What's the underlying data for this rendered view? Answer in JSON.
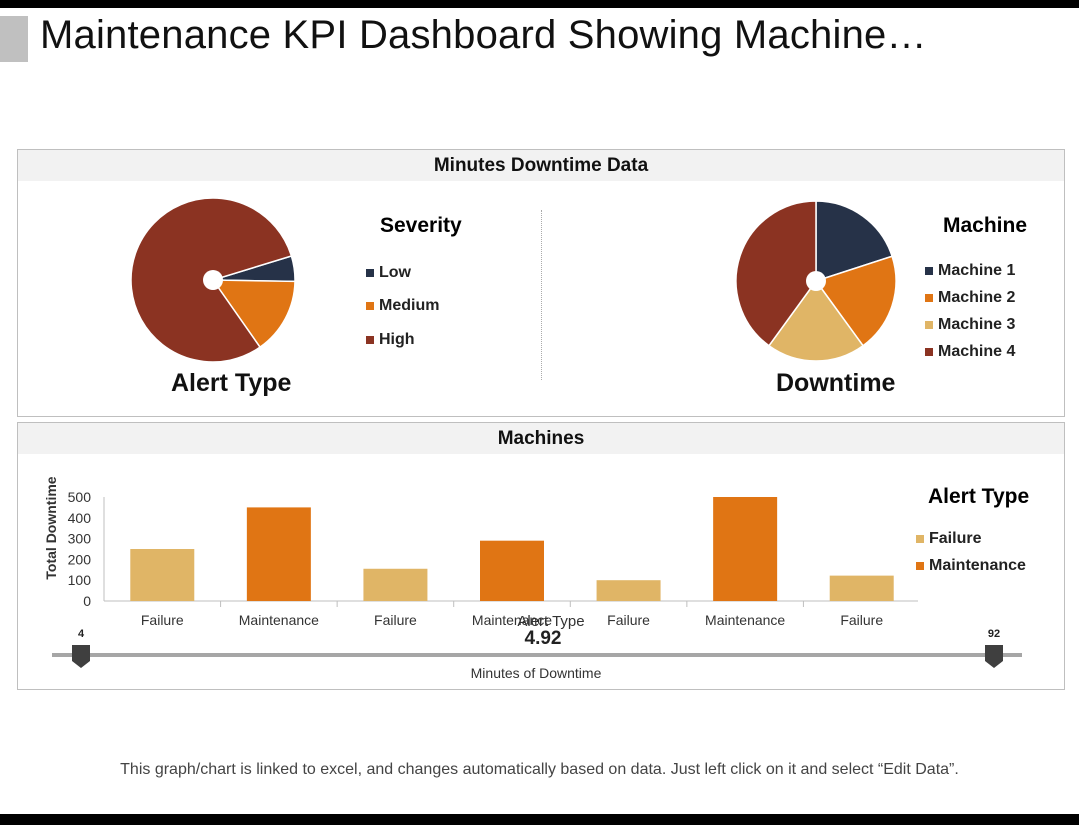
{
  "page": {
    "title": "Maintenance KPI Dashboard Showing Machine…",
    "footnote": "This graph/chart is linked to excel, and changes automatically  based on data. Just left click on it and select “Edit Data”."
  },
  "colors": {
    "navy": "#263248",
    "orange": "#e07514",
    "sand": "#e0b566",
    "brick": "#8b3322",
    "header_bg": "#f2f2f2",
    "slider_track": "#a6a6a6",
    "slider_handle": "#3f3f3f"
  },
  "panel_top": {
    "header": "Minutes Downtime Data"
  },
  "panel_bottom": {
    "header": "Machines"
  },
  "chart_data": [
    {
      "type": "pie",
      "name": "alert-type-pie",
      "title": "Alert Type",
      "legend_title": "Severity",
      "categories": [
        "Low",
        "Medium",
        "High"
      ],
      "values": [
        5,
        15,
        80
      ],
      "colors": [
        "#263248",
        "#e07514",
        "#8b3322"
      ]
    },
    {
      "type": "pie",
      "name": "downtime-pie",
      "title": "Downtime",
      "legend_title": "Machine",
      "categories": [
        "Machine 1",
        "Machine 2",
        "Machine 3",
        "Machine 4"
      ],
      "values": [
        20,
        20,
        20,
        40
      ],
      "colors": [
        "#263248",
        "#e07514",
        "#e0b566",
        "#8b3322"
      ]
    },
    {
      "type": "bar",
      "name": "machines-bar",
      "categories": [
        "Failure",
        "Maintenance",
        "Failure",
        "Maintenance",
        "Failure",
        "Maintenance",
        "Failure"
      ],
      "values": [
        250,
        450,
        155,
        290,
        100,
        500,
        122
      ],
      "series_of_bar": [
        "Failure",
        "Maintenance",
        "Failure",
        "Maintenance",
        "Failure",
        "Maintenance",
        "Failure"
      ],
      "xlabel": "Alert Type",
      "ylabel": "Total Downtime",
      "ylim": [
        0,
        500
      ],
      "yticks": [
        0,
        100,
        200,
        300,
        400,
        500
      ],
      "legend_title": "Alert Type",
      "legend": [
        {
          "name": "Failure",
          "color": "#e0b566"
        },
        {
          "name": "Maintenance",
          "color": "#e07514"
        }
      ]
    }
  ],
  "slider": {
    "min_label": "4",
    "max_label": "92",
    "min": 4,
    "max": 92,
    "value_label": "4.92",
    "label": "Minutes of Downtime"
  }
}
